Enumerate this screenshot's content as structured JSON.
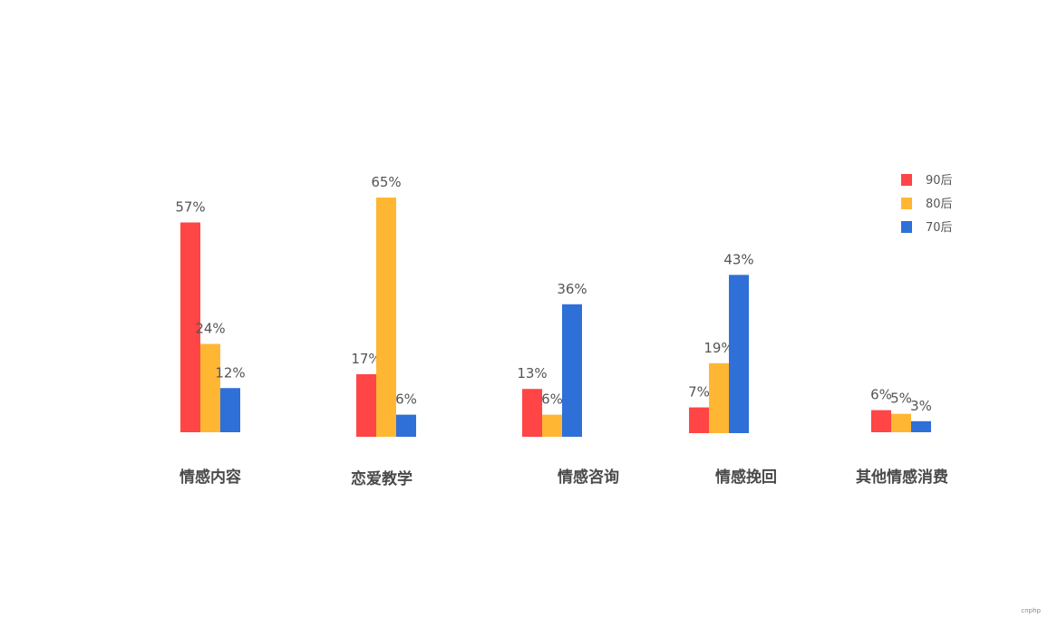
{
  "chart_data": {
    "type": "bar",
    "categories": [
      "情感内容",
      "恋爱教学",
      "情感咨询",
      "情感挽回",
      "其他情感消费"
    ],
    "series": [
      {
        "name": "90后",
        "color": "#ff4545",
        "values": [
          57,
          17,
          13,
          7,
          6
        ],
        "labels": [
          "57%",
          "17%",
          "13%",
          "7%",
          "6%"
        ]
      },
      {
        "name": "80后",
        "color": "#ffb733",
        "values": [
          24,
          65,
          6,
          19,
          5
        ],
        "labels": [
          "24%",
          "65%",
          "6%",
          "19%",
          "5%"
        ]
      },
      {
        "name": "70后",
        "color": "#2f6fd8",
        "values": [
          12,
          6,
          36,
          43,
          3
        ],
        "labels": [
          "12%",
          "6%",
          "36%",
          "43%",
          "3%"
        ]
      }
    ],
    "ylim": [
      0,
      65
    ],
    "legend_position": "top-right",
    "grid": false
  },
  "watermark": "cnphp"
}
